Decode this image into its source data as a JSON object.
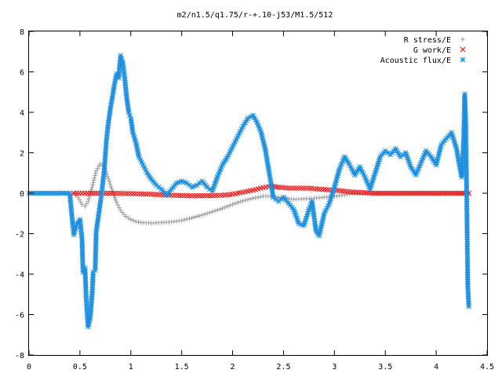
{
  "chart_data": {
    "type": "scatter",
    "title": "m2/n1.5/q1.75/r-+.10-j53/M1.5/512",
    "xlabel": "",
    "ylabel": "",
    "xlim": [
      0,
      4.5
    ],
    "ylim": [
      -8,
      8
    ],
    "x_ticks": [
      "0",
      "0.5",
      "1",
      "1.5",
      "2",
      "2.5",
      "3",
      "3.5",
      "4",
      "4.5"
    ],
    "x_tick_values": [
      0,
      0.5,
      1,
      1.5,
      2,
      2.5,
      3,
      3.5,
      4,
      4.5
    ],
    "y_ticks": [
      "-8",
      "-6",
      "-4",
      "-2",
      "0",
      "2",
      "4",
      "6",
      "8"
    ],
    "y_tick_values": [
      -8,
      -6,
      -4,
      -2,
      0,
      2,
      4,
      6,
      8
    ],
    "grid": false,
    "legend_position": "top-right",
    "series": [
      {
        "name": "R stress/E",
        "marker": "plus",
        "color": "#a0a0a0",
        "points": [
          [
            0.44,
            0.0
          ],
          [
            0.48,
            -0.2
          ],
          [
            0.52,
            -0.55
          ],
          [
            0.55,
            -0.65
          ],
          [
            0.58,
            -0.4
          ],
          [
            0.62,
            0.3
          ],
          [
            0.66,
            1.1
          ],
          [
            0.7,
            1.45
          ],
          [
            0.74,
            1.3
          ],
          [
            0.78,
            0.7
          ],
          [
            0.82,
            0.1
          ],
          [
            0.86,
            -0.45
          ],
          [
            0.9,
            -0.85
          ],
          [
            0.95,
            -1.15
          ],
          [
            1.0,
            -1.3
          ],
          [
            1.05,
            -1.4
          ],
          [
            1.1,
            -1.45
          ],
          [
            1.2,
            -1.48
          ],
          [
            1.3,
            -1.45
          ],
          [
            1.4,
            -1.42
          ],
          [
            1.5,
            -1.35
          ],
          [
            1.6,
            -1.22
          ],
          [
            1.7,
            -1.08
          ],
          [
            1.8,
            -0.92
          ],
          [
            1.9,
            -0.75
          ],
          [
            2.0,
            -0.55
          ],
          [
            2.1,
            -0.38
          ],
          [
            2.2,
            -0.25
          ],
          [
            2.3,
            -0.15
          ],
          [
            2.4,
            -0.15
          ],
          [
            2.5,
            -0.25
          ],
          [
            2.6,
            -0.3
          ],
          [
            2.7,
            -0.28
          ],
          [
            2.8,
            -0.25
          ],
          [
            2.9,
            -0.2
          ],
          [
            3.0,
            -0.15
          ],
          [
            3.1,
            -0.08
          ],
          [
            3.2,
            -0.02
          ],
          [
            3.4,
            0.0
          ],
          [
            3.6,
            0.0
          ],
          [
            3.8,
            0.0
          ],
          [
            4.0,
            0.0
          ],
          [
            4.2,
            0.0
          ],
          [
            4.32,
            0.0
          ]
        ]
      },
      {
        "name": "G work/E",
        "marker": "cross",
        "color": "#ff0000",
        "points": [
          [
            0.44,
            0.0
          ],
          [
            0.6,
            0.0
          ],
          [
            0.8,
            0.0
          ],
          [
            1.0,
            -0.02
          ],
          [
            1.2,
            -0.05
          ],
          [
            1.4,
            -0.1
          ],
          [
            1.6,
            -0.13
          ],
          [
            1.8,
            -0.12
          ],
          [
            1.9,
            -0.1
          ],
          [
            2.0,
            -0.05
          ],
          [
            2.1,
            0.05
          ],
          [
            2.2,
            0.15
          ],
          [
            2.3,
            0.28
          ],
          [
            2.38,
            0.35
          ],
          [
            2.45,
            0.3
          ],
          [
            2.55,
            0.25
          ],
          [
            2.65,
            0.25
          ],
          [
            2.75,
            0.25
          ],
          [
            2.85,
            0.2
          ],
          [
            3.0,
            0.15
          ],
          [
            3.1,
            0.1
          ],
          [
            3.2,
            0.05
          ],
          [
            3.4,
            0.0
          ],
          [
            3.6,
            0.0
          ],
          [
            3.8,
            0.0
          ],
          [
            4.0,
            0.0
          ],
          [
            4.2,
            0.0
          ],
          [
            4.32,
            0.0
          ]
        ]
      },
      {
        "name": "Acoustic flux/E",
        "marker": "star",
        "color": "#1a8ee0",
        "points": [
          [
            0.0,
            0.0
          ],
          [
            0.1,
            0.0
          ],
          [
            0.2,
            0.0
          ],
          [
            0.3,
            0.0
          ],
          [
            0.4,
            0.0
          ],
          [
            0.43,
            -1.6
          ],
          [
            0.44,
            -2.05
          ],
          [
            0.47,
            -1.5
          ],
          [
            0.5,
            -1.3
          ],
          [
            0.52,
            -2.2
          ],
          [
            0.53,
            -3.9
          ],
          [
            0.55,
            -3.7
          ],
          [
            0.56,
            -5.0
          ],
          [
            0.57,
            -5.9
          ],
          [
            0.58,
            -6.6
          ],
          [
            0.6,
            -6.2
          ],
          [
            0.62,
            -5.0
          ],
          [
            0.63,
            -3.9
          ],
          [
            0.65,
            -3.8
          ],
          [
            0.66,
            -1.9
          ],
          [
            0.68,
            -1.2
          ],
          [
            0.7,
            -0.5
          ],
          [
            0.72,
            0.3
          ],
          [
            0.74,
            1.2
          ],
          [
            0.76,
            2.6
          ],
          [
            0.78,
            3.5
          ],
          [
            0.8,
            4.2
          ],
          [
            0.82,
            4.8
          ],
          [
            0.84,
            5.4
          ],
          [
            0.86,
            5.9
          ],
          [
            0.88,
            5.7
          ],
          [
            0.9,
            6.8
          ],
          [
            0.92,
            6.5
          ],
          [
            0.94,
            5.7
          ],
          [
            0.96,
            4.7
          ],
          [
            0.98,
            4.0
          ],
          [
            1.0,
            3.7
          ],
          [
            1.02,
            3.0
          ],
          [
            1.05,
            2.5
          ],
          [
            1.08,
            1.8
          ],
          [
            1.12,
            1.4
          ],
          [
            1.16,
            1.0
          ],
          [
            1.2,
            0.7
          ],
          [
            1.25,
            0.4
          ],
          [
            1.3,
            0.2
          ],
          [
            1.35,
            -0.1
          ],
          [
            1.4,
            0.2
          ],
          [
            1.45,
            0.5
          ],
          [
            1.5,
            0.6
          ],
          [
            1.55,
            0.5
          ],
          [
            1.6,
            0.3
          ],
          [
            1.65,
            0.4
          ],
          [
            1.7,
            0.6
          ],
          [
            1.75,
            0.3
          ],
          [
            1.8,
            0.1
          ],
          [
            1.85,
            0.8
          ],
          [
            1.9,
            1.4
          ],
          [
            1.95,
            1.8
          ],
          [
            2.0,
            2.3
          ],
          [
            2.05,
            2.8
          ],
          [
            2.1,
            3.3
          ],
          [
            2.15,
            3.7
          ],
          [
            2.2,
            3.85
          ],
          [
            2.24,
            3.5
          ],
          [
            2.28,
            3.0
          ],
          [
            2.32,
            2.2
          ],
          [
            2.35,
            1.3
          ],
          [
            2.38,
            0.4
          ],
          [
            2.4,
            -0.2
          ],
          [
            2.45,
            -0.4
          ],
          [
            2.5,
            -0.2
          ],
          [
            2.55,
            -0.5
          ],
          [
            2.6,
            -0.8
          ],
          [
            2.65,
            -1.5
          ],
          [
            2.7,
            -1.6
          ],
          [
            2.75,
            -0.8
          ],
          [
            2.78,
            -0.4
          ],
          [
            2.82,
            -1.9
          ],
          [
            2.85,
            -2.1
          ],
          [
            2.9,
            -1.0
          ],
          [
            2.95,
            -0.5
          ],
          [
            3.0,
            0.3
          ],
          [
            3.05,
            1.2
          ],
          [
            3.1,
            1.8
          ],
          [
            3.15,
            1.4
          ],
          [
            3.2,
            0.9
          ],
          [
            3.25,
            1.3
          ],
          [
            3.3,
            0.8
          ],
          [
            3.35,
            0.2
          ],
          [
            3.4,
            1.0
          ],
          [
            3.45,
            1.8
          ],
          [
            3.5,
            2.1
          ],
          [
            3.55,
            1.9
          ],
          [
            3.6,
            2.2
          ],
          [
            3.65,
            1.8
          ],
          [
            3.7,
            2.0
          ],
          [
            3.75,
            1.3
          ],
          [
            3.8,
            0.9
          ],
          [
            3.85,
            1.5
          ],
          [
            3.9,
            2.1
          ],
          [
            3.95,
            1.8
          ],
          [
            4.0,
            1.4
          ],
          [
            4.05,
            2.4
          ],
          [
            4.1,
            2.7
          ],
          [
            4.15,
            3.0
          ],
          [
            4.2,
            2.2
          ],
          [
            4.22,
            1.6
          ],
          [
            4.25,
            0.8
          ],
          [
            4.27,
            2.7
          ],
          [
            4.28,
            4.9
          ],
          [
            4.29,
            3.6
          ],
          [
            4.3,
            -0.3
          ],
          [
            4.31,
            -4.5
          ],
          [
            4.32,
            -5.6
          ]
        ]
      }
    ]
  }
}
